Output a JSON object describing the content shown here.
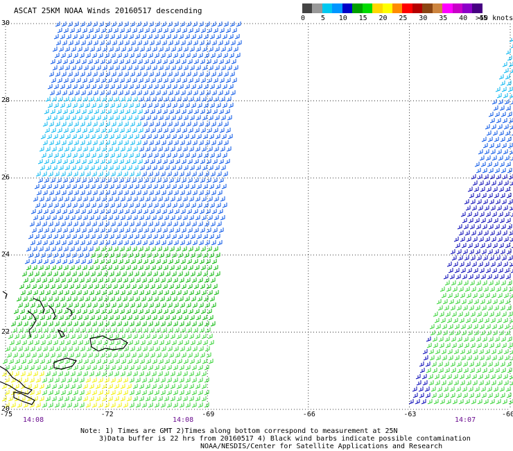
{
  "title": "ASCAT 25KM NOAA Winds 20160517 descending",
  "colorbar": {
    "colors": [
      "#444444",
      "#999999",
      "#00c8f0",
      "#0096ff",
      "#0000c8",
      "#00a000",
      "#00dc00",
      "#ffd700",
      "#ffff00",
      "#ff8c00",
      "#ff0000",
      "#b40000",
      "#8b4513",
      "#cd853f",
      "#ff00ff",
      "#c800c8",
      "#8c00c8",
      "#460082"
    ],
    "tick_labels": [
      "0",
      "5",
      "10",
      "15",
      "20",
      "25",
      "30",
      "35",
      "40",
      "45"
    ],
    "end_label": ">50 knots"
  },
  "map": {
    "lat_labels": [
      "30",
      "28",
      "26",
      "24",
      "22",
      "20"
    ],
    "lon_labels": [
      "-75",
      "-72",
      "-69",
      "-66",
      "-63",
      "-60"
    ],
    "time_labels": [
      "14:08",
      "14:08",
      "14:07"
    ],
    "lat_range": [
      20,
      30
    ],
    "lon_range": [
      -75,
      -60
    ],
    "grid": "dotted",
    "coastline_color": "#000000",
    "wind_speed_colors": {
      "light_blue": "#00b4f0",
      "blue": "#0050e6",
      "dark_blue": "#0000b4",
      "green": "#00b400",
      "light_green": "#32d232",
      "yellow": "#f0f000",
      "contaminated": "#000000"
    }
  },
  "notes": {
    "line1": "Note: 1) Times are GMT 2)Times along bottom correspond to measurement at 25N",
    "line2": "3)Data buffer is 22 hrs from 20160517 4) Black wind barbs indicate possible contamination",
    "line3": "NOAA/NESDIS/Center for Satellite Applications and Research"
  }
}
